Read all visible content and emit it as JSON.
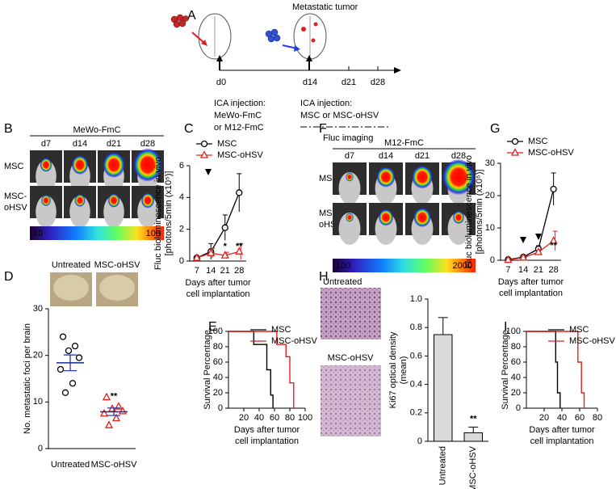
{
  "panel_a": {
    "label": "A",
    "caption": "Metastatic tumor",
    "days": [
      "d0",
      "d14",
      "d21",
      "d28"
    ],
    "left_note": [
      "ICA injection:",
      "MeWo-FmC",
      "or M12-FmC"
    ],
    "right_note": [
      "ICA injection:",
      "MSC or MSC-oHSV"
    ],
    "legend": "Fluc imaging"
  },
  "panel_b": {
    "label": "B",
    "cell_line": "MeWo-FmC",
    "days": [
      "d7",
      "d14",
      "d21",
      "d28"
    ],
    "rows": [
      [
        "MSC"
      ],
      [
        "MSC-",
        "oHSV"
      ]
    ],
    "scale": [
      "10",
      "100"
    ]
  },
  "panel_f": {
    "label": "F",
    "cell_line": "M12-FmC",
    "days": [
      "d7",
      "d14",
      "d21",
      "d28"
    ],
    "rows": [
      [
        "MSC"
      ],
      [
        "MSC-",
        "oHSV"
      ]
    ],
    "scale": [
      "100",
      "2000"
    ]
  },
  "panel_d_photos": {
    "labels": [
      "Untreated",
      "MSC-oHSV"
    ]
  },
  "panel_h_images": {
    "labels": [
      "Untreated",
      "MSC-oHSV"
    ]
  },
  "chart_data": [
    {
      "type": "line",
      "label": "C",
      "categories": [
        7,
        14,
        21,
        28
      ],
      "ylabel": [
        "Fluc bioluminescence in vivo",
        "[photons/5min (x10⁵)]"
      ],
      "xlabel": [
        "Days after tumor",
        "cell implantation"
      ],
      "ylim": [
        0,
        6
      ],
      "yticks": [
        0,
        2,
        4,
        6
      ],
      "legend": "above",
      "series": [
        {
          "name": "MSC",
          "color": "#000000",
          "marker": "circle",
          "values": [
            0.2,
            0.6,
            2.1,
            4.3
          ],
          "errors": [
            0.1,
            0.5,
            0.8,
            1.2
          ]
        },
        {
          "name": "MSC-oHSV",
          "color": "#e0201b",
          "marker": "triangle",
          "values": [
            0.2,
            0.5,
            0.35,
            0.6
          ],
          "errors": [
            0.1,
            0.3,
            0.2,
            0.5
          ]
        }
      ],
      "annotations": [
        {
          "text": "*",
          "category": 21
        },
        {
          "text": "**",
          "category": 28
        }
      ]
    },
    {
      "type": "dot",
      "label": "D",
      "categories": [
        "Untreated",
        "MSC-oHSV"
      ],
      "values": [
        [
          24,
          22,
          21,
          19.5,
          17,
          14,
          12
        ],
        [
          11,
          9,
          8.5,
          8,
          7.5,
          6.5,
          5
        ]
      ],
      "mean": [
        18.4,
        7.9
      ],
      "sem": [
        1.7,
        0.8
      ],
      "colors": [
        "#000000",
        "#e0201b"
      ],
      "markers": [
        "circle",
        "triangle"
      ],
      "ylabel": "No. metastatic foci per brain",
      "ylim": [
        0,
        30
      ],
      "yticks": [
        0,
        10,
        20,
        30
      ],
      "annotations": [
        {
          "text": "**",
          "category": "MSC-oHSV"
        }
      ]
    },
    {
      "type": "step",
      "label": "E",
      "xlim": [
        0,
        100
      ],
      "xticks": [
        20,
        40,
        60,
        80,
        100
      ],
      "ylim": [
        0,
        100
      ],
      "yticks": [
        0,
        20,
        40,
        60,
        80,
        100
      ],
      "ylabel": "Survival Percentage",
      "xlabel": [
        "Days after tumor",
        "cell implantation"
      ],
      "legend": "top-right",
      "series": [
        {
          "name": "MSC",
          "color": "#000000",
          "x": [
            0,
            33,
            33,
            50,
            50,
            55,
            55,
            58,
            58
          ],
          "values": [
            100,
            100,
            83,
            83,
            50,
            50,
            17,
            17,
            0
          ]
        },
        {
          "name": "MSC-oHSV",
          "color": "#e0201b",
          "x": [
            0,
            63,
            63,
            75,
            75,
            80,
            80,
            85,
            85
          ],
          "values": [
            100,
            100,
            83,
            83,
            67,
            67,
            33,
            33,
            0
          ]
        }
      ]
    },
    {
      "type": "line",
      "label": "G",
      "categories": [
        7,
        14,
        21,
        28
      ],
      "ylabel": [
        "Fluc bioluminescence in vivo",
        "[photons/5min (x10⁵)]"
      ],
      "xlabel": [
        "Days after tumor",
        "cell implantation"
      ],
      "ylim": [
        0,
        30
      ],
      "yticks": [
        0,
        10,
        20,
        30
      ],
      "legend": "above",
      "series": [
        {
          "name": "MSC",
          "color": "#000000",
          "marker": "circle",
          "values": [
            0.2,
            1,
            3.5,
            22
          ],
          "errors": [
            0.2,
            0.5,
            1,
            5
          ]
        },
        {
          "name": "MSC-oHSV",
          "color": "#e0201b",
          "marker": "triangle",
          "values": [
            0.1,
            0.8,
            2.5,
            6
          ],
          "errors": [
            0.1,
            0.3,
            0.8,
            3
          ]
        }
      ],
      "annotations": [
        {
          "text": "**",
          "category": 28
        }
      ]
    },
    {
      "type": "bar",
      "label": "H",
      "categories": [
        "Untreated",
        "MSC-oHSV"
      ],
      "values": [
        0.75,
        0.06
      ],
      "errors": [
        0.12,
        0.04
      ],
      "color": "#d9d9d9",
      "ylabel": [
        "Ki67 optical density",
        "(mean)"
      ],
      "ylim": [
        0,
        1
      ],
      "yticks": [
        0,
        0.2,
        0.4,
        0.6,
        0.8,
        {
          "value": 1,
          "label": "1.0"
        }
      ],
      "annotations": [
        {
          "text": "**",
          "category": "MSC-oHSV"
        }
      ]
    },
    {
      "type": "step",
      "label": "I",
      "xlim": [
        0,
        80
      ],
      "xticks": [
        20,
        40,
        60,
        80
      ],
      "ylim": [
        0,
        100
      ],
      "yticks": [
        0,
        20,
        40,
        60,
        80,
        100
      ],
      "ylabel": "Survival Percentage",
      "xlabel": [
        "Days after tumor",
        "cell implantation"
      ],
      "legend": "top-right",
      "series": [
        {
          "name": "MSC",
          "color": "#000000",
          "x": [
            0,
            33,
            33,
            35,
            35,
            38,
            38
          ],
          "values": [
            100,
            100,
            60,
            60,
            20,
            20,
            0
          ]
        },
        {
          "name": "MSC-oHSV",
          "color": "#e0201b",
          "x": [
            0,
            58,
            58,
            62,
            62,
            65,
            65
          ],
          "values": [
            100,
            100,
            60,
            60,
            20,
            20,
            0
          ]
        }
      ]
    }
  ]
}
